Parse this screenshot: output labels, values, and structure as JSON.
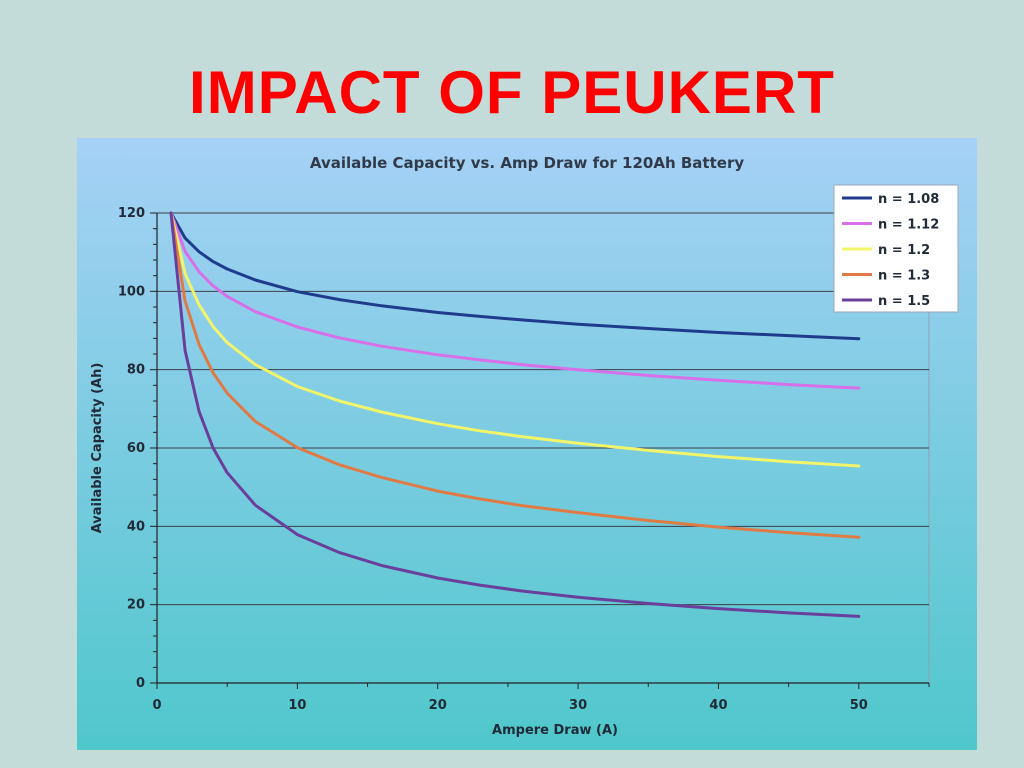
{
  "slide": {
    "title": "IMPACT OF PEUKERT"
  },
  "chart_data": {
    "type": "line",
    "title": "Available Capacity vs. Amp Draw for 120Ah Battery",
    "xlabel": "Ampere Draw (A)",
    "ylabel": "Available Capacity (Ah)",
    "xlim": [
      0,
      55
    ],
    "ylim": [
      0,
      120
    ],
    "xticks": [
      0,
      10,
      20,
      30,
      40,
      50
    ],
    "yticks": [
      0,
      20,
      40,
      60,
      80,
      100,
      120
    ],
    "grid": "horizontal",
    "legend_position": "top-right",
    "x": [
      1,
      2,
      3,
      4,
      5,
      7,
      10,
      13,
      16,
      20,
      23,
      26,
      30,
      35,
      40,
      45,
      50
    ],
    "series": [
      {
        "name": "n = 1.08",
        "color": "#1f3b8c",
        "values": [
          120,
          113.6,
          110.1,
          107.6,
          105.7,
          102.9,
          99.9,
          97.9,
          96.3,
          94.6,
          93.6,
          92.7,
          91.6,
          90.5,
          89.5,
          88.7,
          87.9
        ]
      },
      {
        "name": "n = 1.12",
        "color": "#d86fe8",
        "values": [
          120,
          110.2,
          105.0,
          101.4,
          98.7,
          94.8,
          90.9,
          88.1,
          86.0,
          83.8,
          82.5,
          81.3,
          80.0,
          78.5,
          77.3,
          76.2,
          75.3
        ]
      },
      {
        "name": "n = 1.2",
        "color": "#f2f46a",
        "values": [
          120,
          104.5,
          96.5,
          91.0,
          86.9,
          81.3,
          75.7,
          72.0,
          69.2,
          66.2,
          64.4,
          62.9,
          61.2,
          59.4,
          57.8,
          56.5,
          55.4
        ]
      },
      {
        "name": "n = 1.3",
        "color": "#e07a45",
        "values": [
          120,
          97.5,
          86.4,
          79.2,
          74.0,
          66.8,
          60.1,
          55.7,
          52.5,
          49.0,
          47.0,
          45.3,
          43.5,
          41.5,
          39.8,
          38.4,
          37.2
        ]
      },
      {
        "name": "n = 1.5",
        "color": "#6a3f9c",
        "values": [
          120,
          84.9,
          69.3,
          60.0,
          53.7,
          45.4,
          37.9,
          33.3,
          30.0,
          26.8,
          25.0,
          23.5,
          21.9,
          20.3,
          19.0,
          17.9,
          17.0
        ]
      }
    ]
  }
}
